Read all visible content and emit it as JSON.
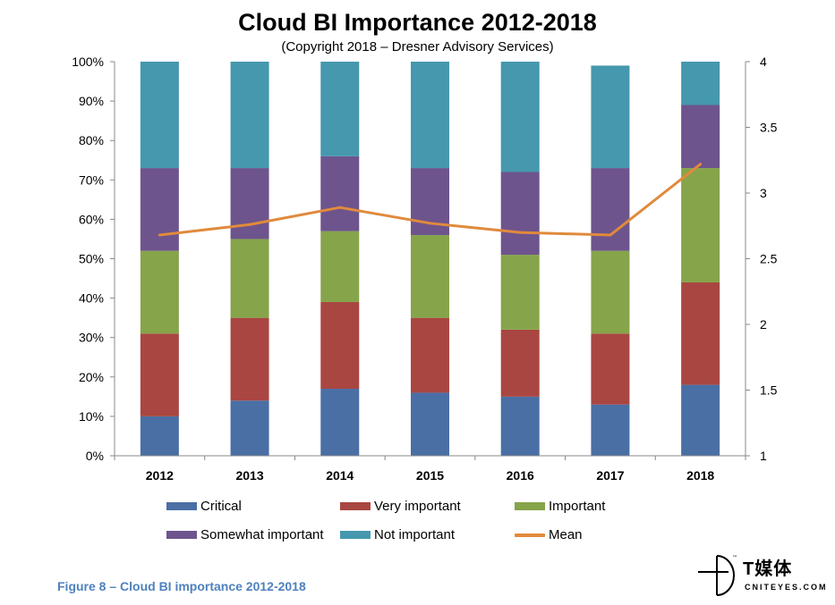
{
  "chart_data": {
    "type": "bar",
    "stacked": true,
    "title": "Cloud BI Importance 2012-2018",
    "subtitle": "(Copyright 2018 – Dresner Advisory Services)",
    "categories": [
      "2012",
      "2013",
      "2014",
      "2015",
      "2016",
      "2017",
      "2018"
    ],
    "series": [
      {
        "name": "Critical",
        "color": "#4a6fa5",
        "values": [
          10,
          14,
          17,
          16,
          15,
          13,
          18
        ]
      },
      {
        "name": "Very important",
        "color": "#a94641",
        "values": [
          21,
          21,
          22,
          19,
          17,
          18,
          26
        ]
      },
      {
        "name": "Important",
        "color": "#86a44a",
        "values": [
          21,
          20,
          18,
          21,
          19,
          21,
          29
        ]
      },
      {
        "name": "Somewhat important",
        "color": "#6e548d",
        "values": [
          21,
          18,
          19,
          17,
          21,
          21,
          16
        ]
      },
      {
        "name": "Not important",
        "color": "#4598ae",
        "values": [
          27,
          27,
          24,
          27,
          28,
          26,
          11
        ]
      }
    ],
    "line_series": {
      "name": "Mean",
      "color": "#e08a3c",
      "axis": "right",
      "values": [
        2.68,
        2.76,
        2.89,
        2.77,
        2.7,
        2.68,
        3.22
      ]
    },
    "y_left": {
      "ticks": [
        "0%",
        "10%",
        "20%",
        "30%",
        "40%",
        "50%",
        "60%",
        "70%",
        "80%",
        "90%",
        "100%"
      ],
      "ylim": [
        0,
        100
      ]
    },
    "y_right": {
      "ticks": [
        "1",
        "1.5",
        "2",
        "2.5",
        "3",
        "3.5",
        "4"
      ],
      "ylim": [
        1,
        4
      ]
    },
    "legend_position": "bottom",
    "grid": false
  },
  "legend": [
    {
      "label": "Critical",
      "color": "#4a6fa5",
      "kind": "box"
    },
    {
      "label": "Very important",
      "color": "#a94641",
      "kind": "box"
    },
    {
      "label": "Important",
      "color": "#86a44a",
      "kind": "box"
    },
    {
      "label": "Somewhat important",
      "color": "#6e548d",
      "kind": "box"
    },
    {
      "label": "Not important",
      "color": "#4598ae",
      "kind": "box"
    },
    {
      "label": "Mean",
      "color": "#e08a3c",
      "kind": "line"
    }
  ],
  "caption": "Figure 8 – Cloud BI importance 2012-2018",
  "logo": {
    "cn": "T媒体",
    "en": "CNITEYES.COM",
    "tm": "™"
  }
}
